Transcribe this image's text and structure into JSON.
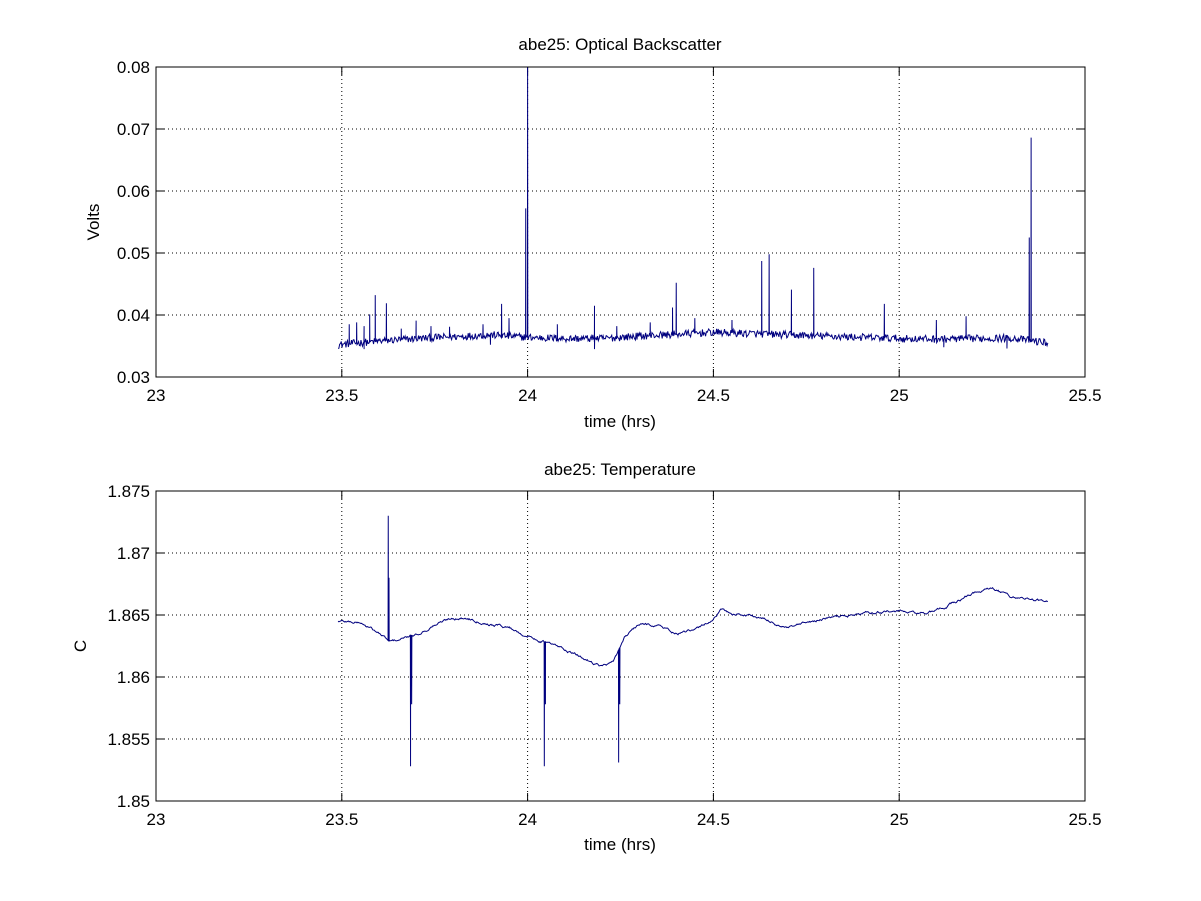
{
  "chart_data": [
    {
      "type": "line",
      "title": "abe25: Optical Backscatter",
      "xlabel": "time (hrs)",
      "ylabel": "Volts",
      "xlim": [
        23,
        25.5
      ],
      "ylim": [
        0.03,
        0.08
      ],
      "xticks": [
        23,
        23.5,
        24,
        24.5,
        25,
        25.5
      ],
      "xtick_labels": [
        "23",
        "23.5",
        "24",
        "24.5",
        "25",
        "25.5"
      ],
      "yticks": [
        0.03,
        0.04,
        0.05,
        0.06,
        0.07,
        0.08
      ],
      "ytick_labels": [
        "0.03",
        "0.04",
        "0.05",
        "0.06",
        "0.07",
        "0.08"
      ],
      "grid": true,
      "color": "#00007f",
      "baseline": [
        [
          23.49,
          0.0352
        ],
        [
          23.6,
          0.0358
        ],
        [
          23.7,
          0.0362
        ],
        [
          23.8,
          0.0365
        ],
        [
          23.9,
          0.0368
        ],
        [
          24.0,
          0.0364
        ],
        [
          24.1,
          0.0362
        ],
        [
          24.2,
          0.0362
        ],
        [
          24.3,
          0.0366
        ],
        [
          24.4,
          0.0369
        ],
        [
          24.5,
          0.0372
        ],
        [
          24.6,
          0.037
        ],
        [
          24.7,
          0.0368
        ],
        [
          24.8,
          0.0366
        ],
        [
          24.9,
          0.0364
        ],
        [
          25.0,
          0.0362
        ],
        [
          25.1,
          0.0361
        ],
        [
          25.2,
          0.0362
        ],
        [
          25.3,
          0.0363
        ],
        [
          25.4,
          0.0355
        ]
      ],
      "spikes": [
        [
          23.52,
          0.0385
        ],
        [
          23.54,
          0.0388
        ],
        [
          23.56,
          0.0382
        ],
        [
          23.575,
          0.0401
        ],
        [
          23.59,
          0.0432
        ],
        [
          23.62,
          0.0419
        ],
        [
          23.66,
          0.0378
        ],
        [
          23.7,
          0.0391
        ],
        [
          23.74,
          0.0382
        ],
        [
          23.79,
          0.0381
        ],
        [
          23.88,
          0.0385
        ],
        [
          23.93,
          0.0418
        ],
        [
          23.95,
          0.0395
        ],
        [
          23.995,
          0.0572
        ],
        [
          24.0,
          0.08
        ],
        [
          24.08,
          0.0385
        ],
        [
          24.18,
          0.0415
        ],
        [
          24.24,
          0.0382
        ],
        [
          24.33,
          0.0388
        ],
        [
          24.39,
          0.0412
        ],
        [
          24.4,
          0.0452
        ],
        [
          24.45,
          0.0395
        ],
        [
          24.55,
          0.0392
        ],
        [
          24.63,
          0.0487
        ],
        [
          24.65,
          0.0498
        ],
        [
          24.71,
          0.0441
        ],
        [
          24.77,
          0.0476
        ],
        [
          24.96,
          0.0418
        ],
        [
          25.1,
          0.0392
        ],
        [
          25.18,
          0.0398
        ],
        [
          25.35,
          0.0525
        ],
        [
          25.355,
          0.0686
        ]
      ],
      "dips": [
        [
          23.56,
          0.0345
        ],
        [
          23.9,
          0.0352
        ],
        [
          24.18,
          0.0345
        ],
        [
          25.12,
          0.0348
        ],
        [
          25.29,
          0.0346
        ]
      ]
    },
    {
      "type": "line",
      "title": "abe25: Temperature",
      "xlabel": "time (hrs)",
      "ylabel": "C",
      "xlim": [
        23,
        25.5
      ],
      "ylim": [
        1.85,
        1.875
      ],
      "xticks": [
        23,
        23.5,
        24,
        24.5,
        25,
        25.5
      ],
      "xtick_labels": [
        "23",
        "23.5",
        "24",
        "24.5",
        "25",
        "25.5"
      ],
      "yticks": [
        1.85,
        1.855,
        1.86,
        1.865,
        1.87,
        1.875
      ],
      "ytick_labels": [
        "1.85",
        "1.855",
        "1.86",
        "1.865",
        "1.87",
        "1.875"
      ],
      "grid": true,
      "color": "#00007f",
      "baseline": [
        [
          23.49,
          1.8645
        ],
        [
          23.55,
          1.8644
        ],
        [
          23.6,
          1.8635
        ],
        [
          23.63,
          1.8628
        ],
        [
          23.7,
          1.8634
        ],
        [
          23.75,
          1.8642
        ],
        [
          23.8,
          1.8648
        ],
        [
          23.85,
          1.8647
        ],
        [
          23.9,
          1.8643
        ],
        [
          23.95,
          1.864
        ],
        [
          24.0,
          1.8633
        ],
        [
          24.05,
          1.8628
        ],
        [
          24.1,
          1.8622
        ],
        [
          24.15,
          1.8615
        ],
        [
          24.2,
          1.8609
        ],
        [
          24.23,
          1.8611
        ],
        [
          24.26,
          1.8632
        ],
        [
          24.3,
          1.8642
        ],
        [
          24.35,
          1.8642
        ],
        [
          24.4,
          1.8635
        ],
        [
          24.45,
          1.8637
        ],
        [
          24.5,
          1.8647
        ],
        [
          24.52,
          1.8654
        ],
        [
          24.55,
          1.8651
        ],
        [
          24.6,
          1.865
        ],
        [
          24.65,
          1.8645
        ],
        [
          24.7,
          1.8639
        ],
        [
          24.75,
          1.8643
        ],
        [
          24.8,
          1.8647
        ],
        [
          24.85,
          1.8649
        ],
        [
          24.9,
          1.8651
        ],
        [
          24.95,
          1.8653
        ],
        [
          25.0,
          1.8653
        ],
        [
          25.05,
          1.8651
        ],
        [
          25.1,
          1.8653
        ],
        [
          25.15,
          1.866
        ],
        [
          25.2,
          1.8668
        ],
        [
          25.25,
          1.8671
        ],
        [
          25.3,
          1.8665
        ],
        [
          25.35,
          1.8663
        ],
        [
          25.4,
          1.866
        ]
      ],
      "spikes": [
        [
          23.625,
          1.873
        ],
        [
          23.627,
          1.868
        ]
      ],
      "dips": [
        [
          23.685,
          1.8528
        ],
        [
          23.688,
          1.8578
        ],
        [
          24.045,
          1.8528
        ],
        [
          24.048,
          1.8578
        ],
        [
          24.245,
          1.8531
        ],
        [
          24.248,
          1.8578
        ]
      ]
    }
  ]
}
